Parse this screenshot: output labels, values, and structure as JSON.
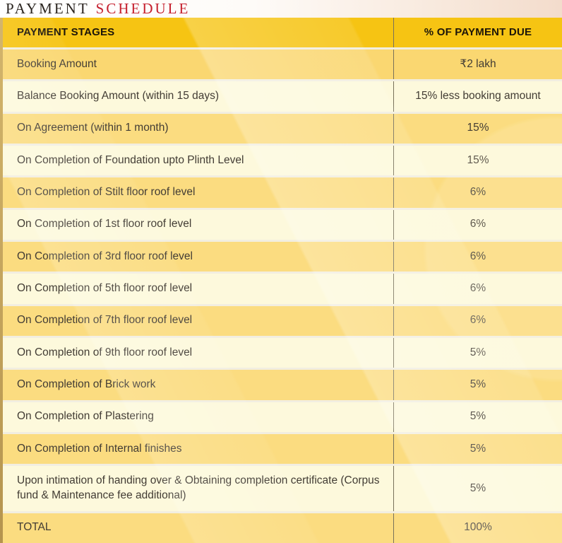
{
  "title": {
    "part1": "PAYMENT",
    "part2": "SCHEDULE"
  },
  "table": {
    "header": {
      "stage": "PAYMENT STAGES",
      "due": "% OF PAYMENT DUE"
    },
    "rows": [
      {
        "stage": "Booking Amount",
        "due": "₹2 lakh"
      },
      {
        "stage": "Balance Booking Amount (within 15 days)",
        "due": "15% less booking amount"
      },
      {
        "stage": "On Agreement (within 1 month)",
        "due": "15%"
      },
      {
        "stage": "On Completion of Foundation upto Plinth Level",
        "due": "15%"
      },
      {
        "stage": "On Completion of Stilt floor roof level",
        "due": "6%"
      },
      {
        "stage": "On Completion of 1st floor roof level",
        "due": "6%"
      },
      {
        "stage": "On Completion of 3rd floor roof level",
        "due": "6%"
      },
      {
        "stage": "On Completion of 5th floor roof level",
        "due": "6%"
      },
      {
        "stage": "On Completion of 7th floor roof level",
        "due": "6%"
      },
      {
        "stage": "On Completion of 9th floor roof level",
        "due": "5%"
      },
      {
        "stage": "On Completion of Brick work",
        "due": "5%"
      },
      {
        "stage": "On Completion of Plastering",
        "due": "5%"
      },
      {
        "stage": "On Completion of Internal finishes",
        "due": "5%"
      },
      {
        "stage": "Upon intimation of handing over & Obtaining completion certificate (Corpus fund & Maintenance fee additional)",
        "due": "5%"
      },
      {
        "stage": "TOTAL",
        "due": "100%"
      }
    ]
  },
  "colors": {
    "header_gold": "#F6C413",
    "row_gold": "#FBDC80",
    "row_cream": "#FDF9DC",
    "title_red": "#C5202E",
    "title_dark": "#2B2520",
    "divider_dark": "#78715A",
    "separator_light": "#F2EEE0",
    "cell_text": "#423C34",
    "header_text": "#1C1509"
  }
}
